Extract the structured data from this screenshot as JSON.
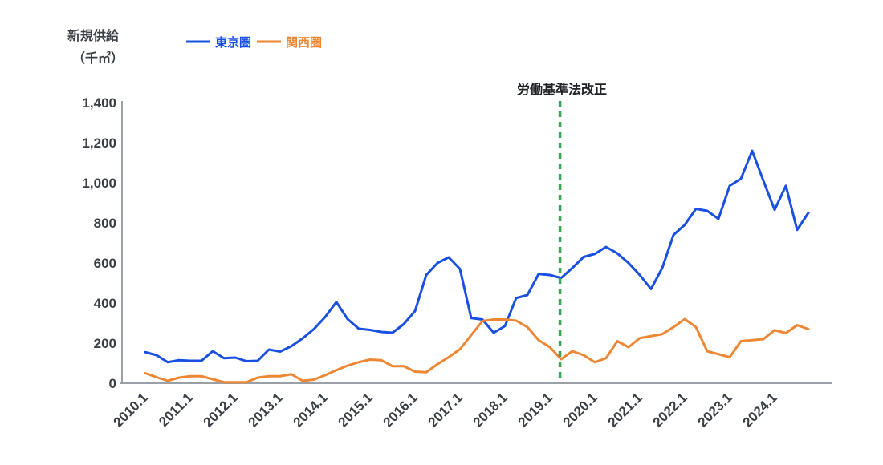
{
  "y_axis": {
    "title_line1": "新規供給",
    "title_line2": "（千㎡）",
    "tick_labels": [
      "0",
      "200",
      "400",
      "600",
      "800",
      "1,000",
      "1,200",
      "1,400"
    ]
  },
  "chart_data": {
    "type": "line",
    "title": "",
    "xlabel": "",
    "ylabel": "新規供給（千㎡）",
    "ylim": [
      0,
      1400
    ],
    "ytick_step": 200,
    "grid": false,
    "legend_position": "top-left",
    "x_unit": "quarter",
    "x_tick_labels": [
      "2010.1",
      "2011.1",
      "2012.1",
      "2013.1",
      "2014.1",
      "2015.1",
      "2016.1",
      "2017.1",
      "2018.1",
      "2019.1",
      "2020.1",
      "2021.1",
      "2022.1",
      "2023.1",
      "2024.1"
    ],
    "series": [
      {
        "name": "東京圏",
        "color": "#1A50E1",
        "values": [
          155,
          140,
          105,
          115,
          112,
          112,
          160,
          125,
          128,
          110,
          112,
          168,
          158,
          185,
          224,
          270,
          330,
          405,
          320,
          272,
          266,
          256,
          252,
          295,
          360,
          540,
          600,
          628,
          570,
          325,
          318,
          252,
          285,
          425,
          440,
          545,
          540,
          525,
          575,
          630,
          645,
          680,
          648,
          600,
          540,
          470,
          575,
          740,
          790,
          870,
          860,
          820,
          985,
          1020,
          1160,
          1010,
          865,
          985,
          765,
          850
        ]
      },
      {
        "name": "関西圏",
        "color": "#ED8733",
        "values": [
          50,
          30,
          12,
          28,
          35,
          35,
          20,
          5,
          5,
          5,
          28,
          35,
          35,
          45,
          12,
          18,
          40,
          65,
          88,
          105,
          118,
          115,
          85,
          85,
          58,
          55,
          95,
          130,
          170,
          240,
          310,
          318,
          318,
          312,
          280,
          215,
          180,
          120,
          160,
          140,
          105,
          125,
          210,
          180,
          225,
          235,
          245,
          280,
          320,
          280,
          160,
          145,
          130,
          210,
          215,
          220,
          265,
          250,
          290,
          270
        ]
      }
    ],
    "annotation": {
      "label": "労働基準法改正",
      "x_index": 36.9,
      "color": "#35A653",
      "style": "dashed-vertical-line"
    },
    "axis_color": "#9AA0A6",
    "tick_text_color": "#3A3F45"
  }
}
